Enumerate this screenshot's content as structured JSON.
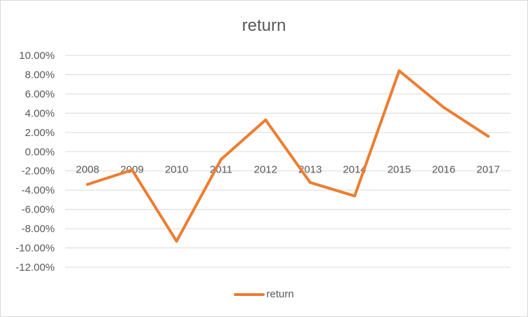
{
  "chart_data": {
    "type": "line",
    "title": "return",
    "xlabel": "",
    "ylabel": "",
    "categories": [
      "2008",
      "2009",
      "2010",
      "2011",
      "2012",
      "2013",
      "2014",
      "2015",
      "2016",
      "2017"
    ],
    "series": [
      {
        "name": "return",
        "color": "#ED7D31",
        "values": [
          -3.4,
          -1.9,
          -9.3,
          -0.8,
          3.3,
          -3.2,
          -4.6,
          8.4,
          4.6,
          1.6
        ]
      }
    ],
    "ylim": [
      -12,
      10
    ],
    "y_ticks": [
      "10.00%",
      "8.00%",
      "6.00%",
      "4.00%",
      "2.00%",
      "0.00%",
      "-2.00%",
      "-4.00%",
      "-6.00%",
      "-8.00%",
      "-10.00%",
      "-12.00%"
    ],
    "grid": true,
    "legend_position": "bottom"
  }
}
